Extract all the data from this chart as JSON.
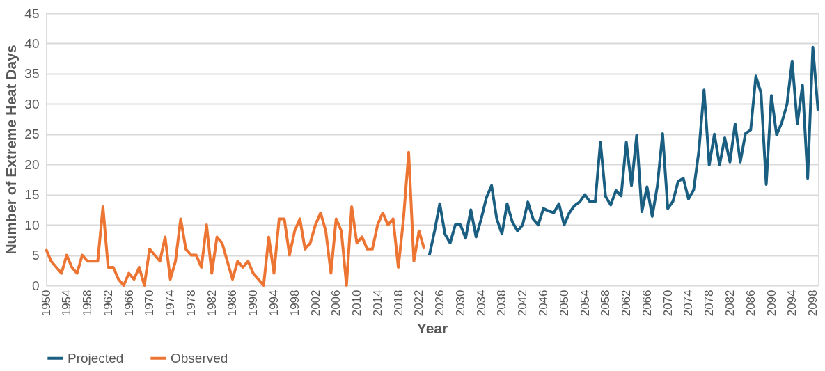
{
  "chart_data": {
    "type": "line",
    "xlabel": "Year",
    "ylabel": "Number of Extreme Heat Days",
    "xlim": [
      1950,
      2099
    ],
    "xticks": [
      1950,
      1954,
      1958,
      1962,
      1966,
      1970,
      1974,
      1978,
      1982,
      1986,
      1990,
      1994,
      1998,
      2002,
      2006,
      2010,
      2014,
      2018,
      2022,
      2026,
      2030,
      2034,
      2038,
      2042,
      2046,
      2050,
      2054,
      2058,
      2062,
      2066,
      2070,
      2074,
      2078,
      2082,
      2086,
      2090,
      2094,
      2098
    ],
    "ylim": [
      0,
      45
    ],
    "yticks": [
      0,
      5,
      10,
      15,
      20,
      25,
      30,
      35,
      40,
      45
    ],
    "grid": "y",
    "legend": "bottom",
    "line_style": "solid",
    "marker": "none",
    "series": [
      {
        "name": "Projected",
        "color": "#1a5f82",
        "x": [
          2024,
          2025,
          2026,
          2027,
          2028,
          2029,
          2030,
          2031,
          2032,
          2033,
          2034,
          2035,
          2036,
          2037,
          2038,
          2039,
          2040,
          2041,
          2042,
          2043,
          2044,
          2045,
          2046,
          2047,
          2048,
          2049,
          2050,
          2051,
          2052,
          2053,
          2054,
          2055,
          2056,
          2057,
          2058,
          2059,
          2060,
          2061,
          2062,
          2063,
          2064,
          2065,
          2066,
          2067,
          2068,
          2069,
          2070,
          2071,
          2072,
          2073,
          2074,
          2075,
          2076,
          2077,
          2078,
          2079,
          2080,
          2081,
          2082,
          2083,
          2084,
          2085,
          2086,
          2087,
          2088,
          2089,
          2090,
          2091,
          2092,
          2093,
          2094,
          2095,
          2096,
          2097,
          2098,
          2099
        ],
        "values": [
          5,
          9,
          13.5,
          8.5,
          7,
          10,
          10,
          7.8,
          12.5,
          8,
          11,
          14.5,
          16.5,
          11,
          8.5,
          13.5,
          10.5,
          9,
          10,
          13.8,
          11,
          10,
          12.7,
          12.3,
          12,
          13.5,
          10,
          12,
          13.2,
          13.8,
          15,
          13.8,
          13.8,
          23.7,
          14.7,
          13.3,
          15.7,
          14.8,
          23.7,
          16.5,
          24.8,
          12.2,
          16.3,
          11.4,
          16.5,
          25.1,
          12.7,
          13.9,
          17.2,
          17.7,
          14.3,
          15.8,
          22.2,
          32.3,
          19.9,
          25,
          19.9,
          24.4,
          20.4,
          26.7,
          20.4,
          25.1,
          25.7,
          34.6,
          31.8,
          16.7,
          31.4,
          24.9,
          26.9,
          29.9,
          37.1,
          26.7,
          33.1,
          17.7,
          39.4,
          28.9
        ]
      },
      {
        "name": "Observed",
        "color": "#ed7533",
        "x": [
          1950,
          1951,
          1952,
          1953,
          1954,
          1955,
          1956,
          1957,
          1958,
          1959,
          1960,
          1961,
          1962,
          1963,
          1964,
          1965,
          1966,
          1967,
          1968,
          1969,
          1970,
          1971,
          1972,
          1973,
          1974,
          1975,
          1976,
          1977,
          1978,
          1979,
          1980,
          1981,
          1982,
          1983,
          1984,
          1985,
          1986,
          1987,
          1988,
          1989,
          1990,
          1991,
          1992,
          1993,
          1994,
          1995,
          1996,
          1997,
          1998,
          1999,
          2000,
          2001,
          2002,
          2003,
          2004,
          2005,
          2006,
          2007,
          2008,
          2009,
          2010,
          2011,
          2012,
          2013,
          2014,
          2015,
          2016,
          2017,
          2018,
          2019,
          2020,
          2021,
          2022,
          2023
        ],
        "values": [
          6,
          4,
          3,
          2,
          5,
          3,
          2,
          5,
          4,
          4,
          4,
          13,
          3,
          3,
          1,
          0,
          2,
          1,
          3,
          0,
          6,
          5,
          4,
          8,
          1,
          4,
          11,
          6,
          5,
          5,
          3,
          10,
          2,
          8,
          7,
          4,
          1,
          4,
          3,
          4,
          2,
          1,
          0,
          8,
          2,
          11,
          11,
          5,
          9,
          11,
          6,
          7,
          10,
          12,
          9,
          2,
          11,
          9,
          0,
          13,
          7,
          8,
          6,
          6,
          10,
          12,
          10,
          11,
          3,
          11,
          22,
          4,
          9,
          6
        ]
      }
    ]
  }
}
